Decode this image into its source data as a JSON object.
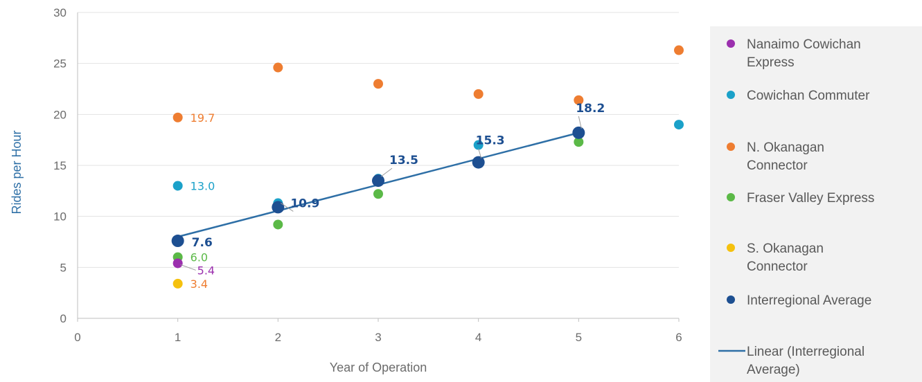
{
  "chart_data": {
    "type": "scatter",
    "xlabel": "Year of Operation",
    "ylabel": "Rides per Hour",
    "xlim": [
      0,
      6
    ],
    "ylim": [
      0,
      30
    ],
    "x_ticks": [
      "0",
      "1",
      "2",
      "3",
      "4",
      "5",
      "6"
    ],
    "y_ticks": [
      "0",
      "5",
      "10",
      "15",
      "20",
      "25",
      "30"
    ],
    "grid": "horizontal",
    "legend_position": "right",
    "series": [
      {
        "name": "Nanaimo Cowichan Express",
        "legend_lines": [
          "Nanaimo Cowichan",
          "Express"
        ],
        "color": "#9b2fae",
        "points": [
          {
            "x": 1,
            "y": 5.4
          }
        ],
        "labels": [
          {
            "x": 1,
            "y": 5.4,
            "text": "5.4"
          }
        ]
      },
      {
        "name": "Cowichan Commuter",
        "legend_lines": [
          "Cowichan Commuter"
        ],
        "color": "#1ba1c9",
        "points": [
          {
            "x": 1,
            "y": 13.0
          },
          {
            "x": 2,
            "y": 11.3
          },
          {
            "x": 3,
            "y": 13.7
          },
          {
            "x": 4,
            "y": 17.0
          },
          {
            "x": 6,
            "y": 19.0
          }
        ],
        "labels": [
          {
            "x": 1,
            "y": 13.0,
            "text": "13.0"
          }
        ]
      },
      {
        "name": "N. Okanagan Connector",
        "legend_lines": [
          "N. Okanagan",
          "Connector"
        ],
        "color": "#ee7d31",
        "points": [
          {
            "x": 1,
            "y": 19.7
          },
          {
            "x": 2,
            "y": 24.6
          },
          {
            "x": 3,
            "y": 23.0
          },
          {
            "x": 4,
            "y": 22.0
          },
          {
            "x": 5,
            "y": 21.4
          },
          {
            "x": 6,
            "y": 26.3
          }
        ],
        "labels": [
          {
            "x": 1,
            "y": 19.7,
            "text": "19.7"
          }
        ]
      },
      {
        "name": "Fraser Valley Express",
        "legend_lines": [
          "Fraser Valley Express"
        ],
        "color": "#5bb947",
        "points": [
          {
            "x": 1,
            "y": 6.0
          },
          {
            "x": 2,
            "y": 9.2
          },
          {
            "x": 3,
            "y": 12.2
          },
          {
            "x": 5,
            "y": 17.3
          }
        ],
        "labels": [
          {
            "x": 1,
            "y": 6.0,
            "text": "6.0"
          }
        ]
      },
      {
        "name": "S. Okanagan Connector",
        "legend_lines": [
          "S. Okanagan",
          "Connector"
        ],
        "color": "#f5c10e",
        "points": [
          {
            "x": 1,
            "y": 3.4
          }
        ],
        "labels": [
          {
            "x": 1,
            "y": 3.4,
            "text": "3.4",
            "color": "#ee7d31"
          }
        ]
      },
      {
        "name": "Interregional Average",
        "legend_lines": [
          "Interregional Average"
        ],
        "color": "#1d4f91",
        "points": [
          {
            "x": 1,
            "y": 7.6
          },
          {
            "x": 2,
            "y": 10.9
          },
          {
            "x": 3,
            "y": 13.5
          },
          {
            "x": 4,
            "y": 15.3
          },
          {
            "x": 5,
            "y": 18.2
          }
        ],
        "labels": [
          {
            "x": 1,
            "y": 7.6,
            "text": "7.6"
          },
          {
            "x": 2,
            "y": 10.9,
            "text": "10.9"
          },
          {
            "x": 3,
            "y": 13.5,
            "text": "13.5"
          },
          {
            "x": 4,
            "y": 15.3,
            "text": "15.3"
          },
          {
            "x": 5,
            "y": 18.2,
            "text": "18.2"
          }
        ]
      }
    ],
    "trendline": {
      "name": "Linear (Interregional Average)",
      "legend_lines": [
        "Linear (Interregional",
        "Average)"
      ],
      "color": "#2e6fa6",
      "from": {
        "x": 1,
        "y": 8.0
      },
      "to": {
        "x": 5,
        "y": 18.2
      }
    }
  }
}
